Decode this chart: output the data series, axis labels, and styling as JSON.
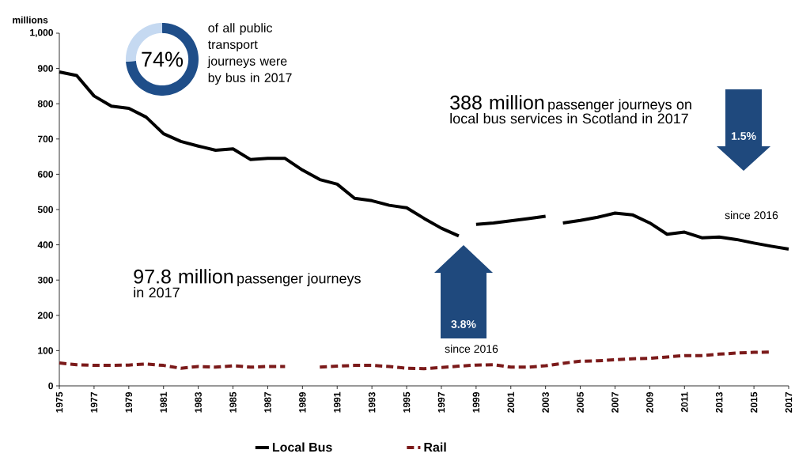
{
  "chart_data": [
    {
      "type": "line",
      "ylabel": "millions",
      "xlim": [
        1975,
        2017
      ],
      "ylim": [
        0,
        1000
      ],
      "xticks": [
        1975,
        1977,
        1979,
        1981,
        1983,
        1985,
        1987,
        1989,
        1991,
        1993,
        1995,
        1997,
        1999,
        2001,
        2003,
        2005,
        2007,
        2009,
        2011,
        2013,
        2015,
        2017
      ],
      "yticks": [
        0,
        100,
        200,
        300,
        400,
        500,
        600,
        700,
        800,
        900,
        {
          "value": 1000,
          "label": "1,000"
        }
      ],
      "series": [
        {
          "name": "Local Bus",
          "color": "#000000",
          "line_style": "solid",
          "x": [
            1975,
            1976,
            1977,
            1978,
            1979,
            1980,
            1981,
            1982,
            1983,
            1984,
            1985,
            1986,
            1987,
            1988,
            1989,
            1990,
            1991,
            1992,
            1993,
            1994,
            1995,
            1996,
            1997,
            1998,
            1998.5,
            1999,
            2000,
            2001,
            2002,
            2003,
            2003.5,
            2004,
            2005,
            2006,
            2007,
            2008,
            2009,
            2010,
            2011,
            2012,
            2013,
            2014,
            2015,
            2016,
            2017
          ],
          "values": [
            890,
            880,
            822,
            793,
            787,
            762,
            715,
            693,
            680,
            668,
            672,
            642,
            645,
            645,
            612,
            585,
            572,
            532,
            525,
            512,
            505,
            475,
            447,
            425,
            null,
            458,
            462,
            468,
            474,
            481,
            null,
            462,
            469,
            478,
            490,
            485,
            462,
            430,
            436,
            420,
            422,
            415,
            405,
            396,
            388
          ]
        },
        {
          "name": "Rail",
          "color": "#7b1a1a",
          "line_style": "dashed",
          "x": [
            1975,
            1976,
            1977,
            1978,
            1979,
            1980,
            1981,
            1982,
            1983,
            1984,
            1985,
            1986,
            1987,
            1988,
            1989,
            1990,
            1991,
            1992,
            1993,
            1994,
            1995,
            1996,
            1997,
            1998,
            1999,
            2000,
            2001,
            2002,
            2003,
            2004,
            2005,
            2006,
            2007,
            2008,
            2009,
            2010,
            2011,
            2012,
            2013,
            2014,
            2015,
            2016
          ],
          "values": [
            65,
            60,
            58,
            58,
            59,
            62,
            58,
            50,
            55,
            53,
            57,
            53,
            55,
            55,
            null,
            53,
            56,
            58,
            58,
            55,
            50,
            49,
            52,
            56,
            59,
            60,
            53,
            53,
            57,
            64,
            70,
            71,
            74,
            77,
            78,
            82,
            86,
            86,
            90,
            93,
            95,
            96
          ]
        }
      ],
      "marker": "none",
      "legend": "bottom",
      "annotations": [
        "388 million",
        "passenger journeys on local bus services in Scotland in 2017",
        "97.8 million",
        "passenger journeys in 2017",
        "3.8%",
        "since 2016",
        "1.5%",
        "since 2016"
      ]
    },
    {
      "type": "donut",
      "categories": [
        null,
        null
      ],
      "values": [
        74,
        26
      ],
      "colors": [
        "#1f4e89",
        "#c5d9f1"
      ],
      "value_labels": [
        "74%",
        null
      ],
      "annotations": [
        "of all public transport journeys were by bus in 2017"
      ]
    }
  ]
}
